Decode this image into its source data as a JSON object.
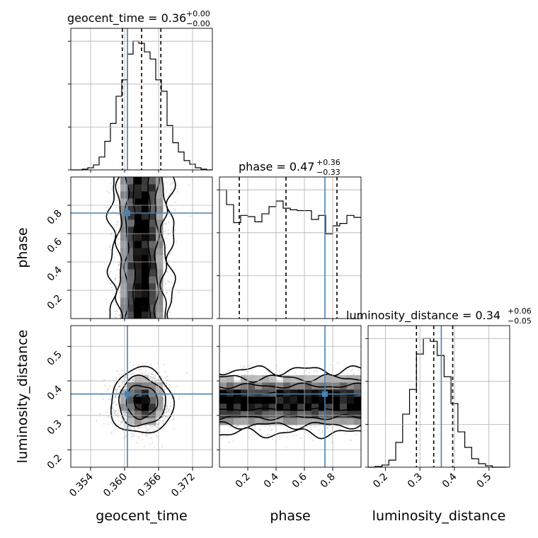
{
  "chart_data": {
    "type": "corner",
    "parameters": [
      "geocent_time",
      "phase",
      "luminosity_distance"
    ],
    "truths": {
      "geocent_time": 0.3605,
      "phase": 0.745,
      "luminosity_distance": 0.362
    },
    "titles": [
      {
        "param": "geocent_time",
        "prefix": "geocent_time = 0.36",
        "plus": "+0.00",
        "minus": "−0.00"
      },
      {
        "param": "phase",
        "prefix": "phase = 0.47",
        "plus": "+0.36",
        "minus": "−0.33"
      },
      {
        "param": "luminosity_distance",
        "prefix": "luminosity_distance = 0.34",
        "plus": "+0.06",
        "minus": "−0.05"
      }
    ],
    "axes": {
      "geocent_time": {
        "label": "geocent_time",
        "range": [
          0.3505,
          0.3755
        ],
        "ticks": [
          0.354,
          0.36,
          0.366,
          0.372
        ],
        "tick_labels": [
          "0.354",
          "0.360",
          "0.366",
          "0.372"
        ]
      },
      "phase": {
        "label": "phase",
        "range": [
          0.0,
          1.0
        ],
        "ticks": [
          0.2,
          0.4,
          0.6,
          0.8
        ],
        "tick_labels": [
          "0.2",
          "0.4",
          "0.6",
          "0.8"
        ]
      },
      "luminosity_distance": {
        "label": "luminosity_distance",
        "range": [
          0.15,
          0.56
        ],
        "ticks": [
          0.2,
          0.3,
          0.4,
          0.5
        ],
        "tick_labels": [
          "0.2",
          "0.3",
          "0.4",
          "0.5"
        ]
      }
    },
    "y_tick_labels": {
      "phase": [
        "0.2",
        "0.4",
        "0.6",
        "0.8"
      ],
      "luminosity_distance": [
        "0.2",
        "0.3",
        "0.4",
        "0.5"
      ]
    },
    "histograms": {
      "geocent_time": {
        "quantiles": [
          0.3596,
          0.363,
          0.3664
        ],
        "edges": [
          0.3505,
          0.3515,
          0.3525,
          0.3535,
          0.3545,
          0.3555,
          0.3565,
          0.3575,
          0.3585,
          0.3595,
          0.3605,
          0.3615,
          0.3625,
          0.3635,
          0.3645,
          0.3655,
          0.3665,
          0.3675,
          0.3685,
          0.3695,
          0.3705,
          0.3715,
          0.3725,
          0.3735,
          0.3745,
          0.3755
        ],
        "counts": [
          0,
          0,
          1,
          3,
          7,
          18,
          40,
          65,
          103,
          126,
          162,
          180,
          177,
          165,
          155,
          126,
          110,
          62,
          38,
          25,
          13,
          8,
          3,
          1,
          0
        ]
      },
      "phase": {
        "quantiles": [
          0.14,
          0.47,
          0.83
        ],
        "edges": [
          0.0,
          0.05,
          0.1,
          0.15,
          0.2,
          0.25,
          0.3,
          0.35,
          0.4,
          0.45,
          0.5,
          0.55,
          0.6,
          0.65,
          0.7,
          0.75,
          0.8,
          0.85,
          0.9,
          0.95,
          1.0
        ],
        "counts": [
          322,
          285,
          240,
          258,
          255,
          242,
          262,
          280,
          294,
          276,
          272,
          270,
          270,
          248,
          258,
          212,
          232,
          238,
          258,
          253
        ]
      },
      "luminosity_distance": {
        "quantiles": [
          0.29,
          0.34,
          0.395
        ],
        "edges": [
          0.15,
          0.17,
          0.19,
          0.21,
          0.23,
          0.25,
          0.27,
          0.29,
          0.31,
          0.33,
          0.35,
          0.37,
          0.39,
          0.41,
          0.43,
          0.45,
          0.47,
          0.49,
          0.51,
          0.53,
          0.55
        ],
        "counts": [
          0,
          1,
          3,
          10,
          35,
          75,
          110,
          160,
          182,
          178,
          158,
          128,
          90,
          50,
          28,
          12,
          5,
          2,
          0,
          0
        ]
      }
    },
    "scatter_panels": [
      {
        "x": "geocent_time",
        "y": "phase",
        "center": [
          0.363,
          0.5
        ],
        "sigma": [
          0.0022,
          0.29
        ]
      },
      {
        "x": "geocent_time",
        "y": "luminosity_distance",
        "center": [
          0.363,
          0.34
        ],
        "sigma": [
          0.0022,
          0.038
        ]
      },
      {
        "x": "phase",
        "y": "luminosity_distance",
        "center": [
          0.5,
          0.34
        ],
        "sigma": [
          0.29,
          0.038
        ]
      }
    ]
  }
}
